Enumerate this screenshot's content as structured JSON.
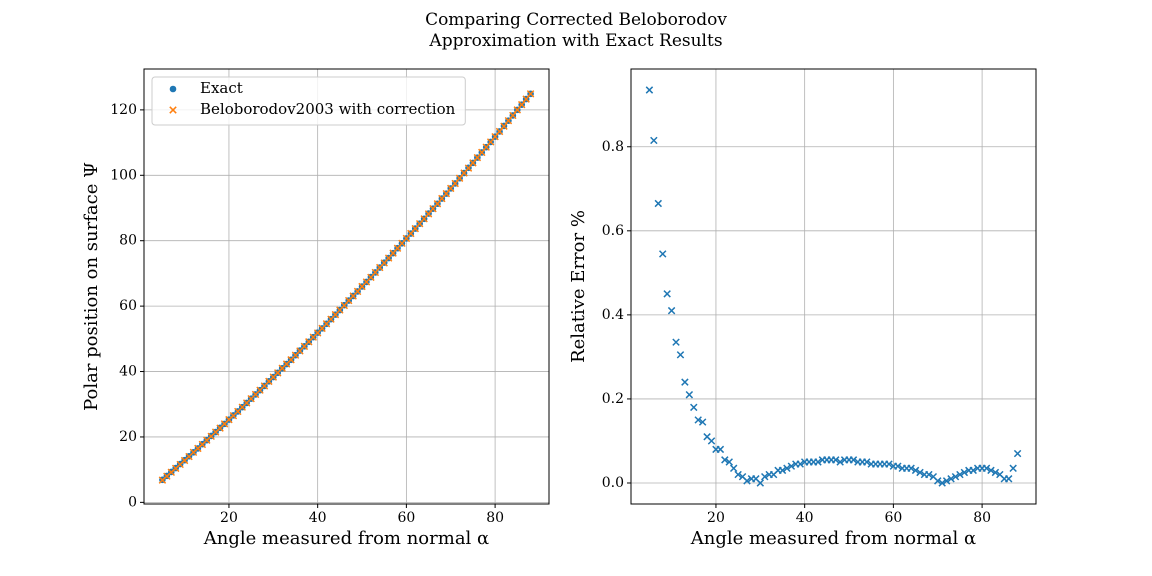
{
  "title": "Comparing Corrected Beloborodov\nApproximation with Exact Results",
  "chart_data": [
    {
      "type": "scatter",
      "xlabel": "Angle measured from normal α",
      "ylabel": "Polar position on surface Ψ",
      "x": [
        5,
        6,
        7,
        8,
        9,
        10,
        11,
        12,
        13,
        14,
        15,
        16,
        17,
        18,
        19,
        20,
        21,
        22,
        23,
        24,
        25,
        26,
        27,
        28,
        29,
        30,
        31,
        32,
        33,
        34,
        35,
        36,
        37,
        38,
        39,
        40,
        41,
        42,
        43,
        44,
        45,
        46,
        47,
        48,
        49,
        50,
        51,
        52,
        53,
        54,
        55,
        56,
        57,
        58,
        59,
        60,
        61,
        62,
        63,
        64,
        65,
        66,
        67,
        68,
        69,
        70,
        71,
        72,
        73,
        74,
        75,
        76,
        77,
        78,
        79,
        80,
        81,
        82,
        83,
        84,
        85,
        86,
        87,
        88
      ],
      "series": [
        {
          "name": "Exact",
          "color": "#1f77b4",
          "marker": "o",
          "values": [
            6.9,
            8.1,
            9.3,
            10.5,
            11.7,
            12.9,
            14.1,
            15.3,
            16.5,
            17.8,
            19.0,
            20.3,
            21.5,
            22.8,
            24.0,
            25.3,
            26.6,
            27.8,
            29.1,
            30.4,
            31.7,
            33.0,
            34.3,
            35.6,
            37.0,
            38.3,
            39.6,
            41.0,
            42.3,
            43.6,
            45.0,
            46.4,
            47.7,
            49.1,
            50.5,
            51.9,
            53.2,
            54.6,
            56.0,
            57.4,
            58.8,
            60.3,
            61.7,
            63.1,
            64.5,
            66.0,
            67.4,
            68.9,
            70.3,
            71.8,
            73.3,
            74.7,
            76.2,
            77.7,
            79.2,
            80.7,
            82.2,
            83.7,
            85.2,
            86.7,
            88.3,
            89.8,
            91.3,
            92.9,
            94.4,
            96.0,
            97.5,
            99.1,
            100.7,
            102.3,
            103.8,
            105.4,
            107.0,
            108.6,
            110.2,
            111.8,
            113.4,
            115.1,
            116.7,
            118.3,
            120.0,
            121.6,
            123.3,
            124.9
          ]
        },
        {
          "name": "Beloborodov2003 with correction",
          "color": "#ff7f0e",
          "marker": "x",
          "values": [
            6.8,
            8.0,
            9.2,
            10.4,
            11.6,
            12.8,
            14.0,
            15.3,
            16.5,
            17.7,
            19.0,
            20.2,
            21.5,
            22.7,
            24.0,
            25.3,
            26.5,
            27.8,
            29.1,
            30.4,
            31.7,
            33.0,
            34.3,
            35.6,
            37.0,
            38.3,
            39.6,
            41.0,
            42.3,
            43.6,
            45.0,
            46.3,
            47.7,
            49.1,
            50.5,
            51.8,
            53.2,
            54.6,
            56.0,
            57.4,
            58.8,
            60.2,
            61.7,
            63.1,
            64.5,
            66.0,
            67.4,
            68.8,
            70.3,
            71.8,
            73.2,
            74.7,
            76.2,
            77.7,
            79.2,
            80.7,
            82.2,
            83.7,
            85.2,
            86.7,
            88.2,
            89.8,
            91.3,
            92.9,
            94.4,
            96.0,
            97.5,
            99.1,
            100.7,
            102.2,
            103.8,
            105.4,
            107.0,
            108.6,
            110.2,
            111.8,
            113.4,
            115.0,
            116.7,
            118.3,
            120.0,
            121.6,
            123.3,
            124.9
          ]
        }
      ],
      "xlim": [
        0.85,
        92.15
      ],
      "ylim": [
        -0.5,
        132.5
      ],
      "xticks": [
        20,
        40,
        60,
        80
      ],
      "yticks": [
        0,
        20,
        40,
        60,
        80,
        100,
        120
      ],
      "grid": true,
      "legend": "upper left"
    },
    {
      "type": "scatter",
      "xlabel": "Angle measured from normal α",
      "ylabel": "Relative Error %",
      "x": [
        5,
        6,
        7,
        8,
        9,
        10,
        11,
        12,
        13,
        14,
        15,
        16,
        17,
        18,
        19,
        20,
        21,
        22,
        23,
        24,
        25,
        26,
        27,
        28,
        29,
        30,
        31,
        32,
        33,
        34,
        35,
        36,
        37,
        38,
        39,
        40,
        41,
        42,
        43,
        44,
        45,
        46,
        47,
        48,
        49,
        50,
        51,
        52,
        53,
        54,
        55,
        56,
        57,
        58,
        59,
        60,
        61,
        62,
        63,
        64,
        65,
        66,
        67,
        68,
        69,
        70,
        71,
        72,
        73,
        74,
        75,
        76,
        77,
        78,
        79,
        80,
        81,
        82,
        83,
        84,
        85,
        86,
        87,
        88
      ],
      "series": [
        {
          "color": "#1f77b4",
          "marker": "x",
          "values": [
            0.935,
            0.815,
            0.665,
            0.545,
            0.45,
            0.41,
            0.335,
            0.305,
            0.24,
            0.21,
            0.18,
            0.15,
            0.145,
            0.11,
            0.1,
            0.08,
            0.08,
            0.055,
            0.05,
            0.035,
            0.02,
            0.015,
            0.005,
            0.01,
            0.01,
            0.0,
            0.015,
            0.02,
            0.02,
            0.03,
            0.03,
            0.035,
            0.04,
            0.045,
            0.045,
            0.05,
            0.05,
            0.05,
            0.05,
            0.055,
            0.055,
            0.055,
            0.055,
            0.05,
            0.055,
            0.055,
            0.055,
            0.05,
            0.05,
            0.05,
            0.045,
            0.045,
            0.045,
            0.045,
            0.045,
            0.04,
            0.04,
            0.035,
            0.035,
            0.035,
            0.03,
            0.025,
            0.02,
            0.02,
            0.015,
            0.005,
            0.0,
            0.005,
            0.01,
            0.015,
            0.02,
            0.025,
            0.03,
            0.03,
            0.035,
            0.035,
            0.035,
            0.03,
            0.025,
            0.02,
            0.01,
            0.01,
            0.035,
            0.07
          ]
        }
      ],
      "xlim": [
        0.85,
        92.15
      ],
      "ylim": [
        -0.05,
        0.985
      ],
      "xticks": [
        20,
        40,
        60,
        80
      ],
      "yticks": [
        {
          "value": 0,
          "label": "0.0"
        },
        0.2,
        0.4,
        0.6,
        0.8
      ],
      "grid": true
    }
  ]
}
